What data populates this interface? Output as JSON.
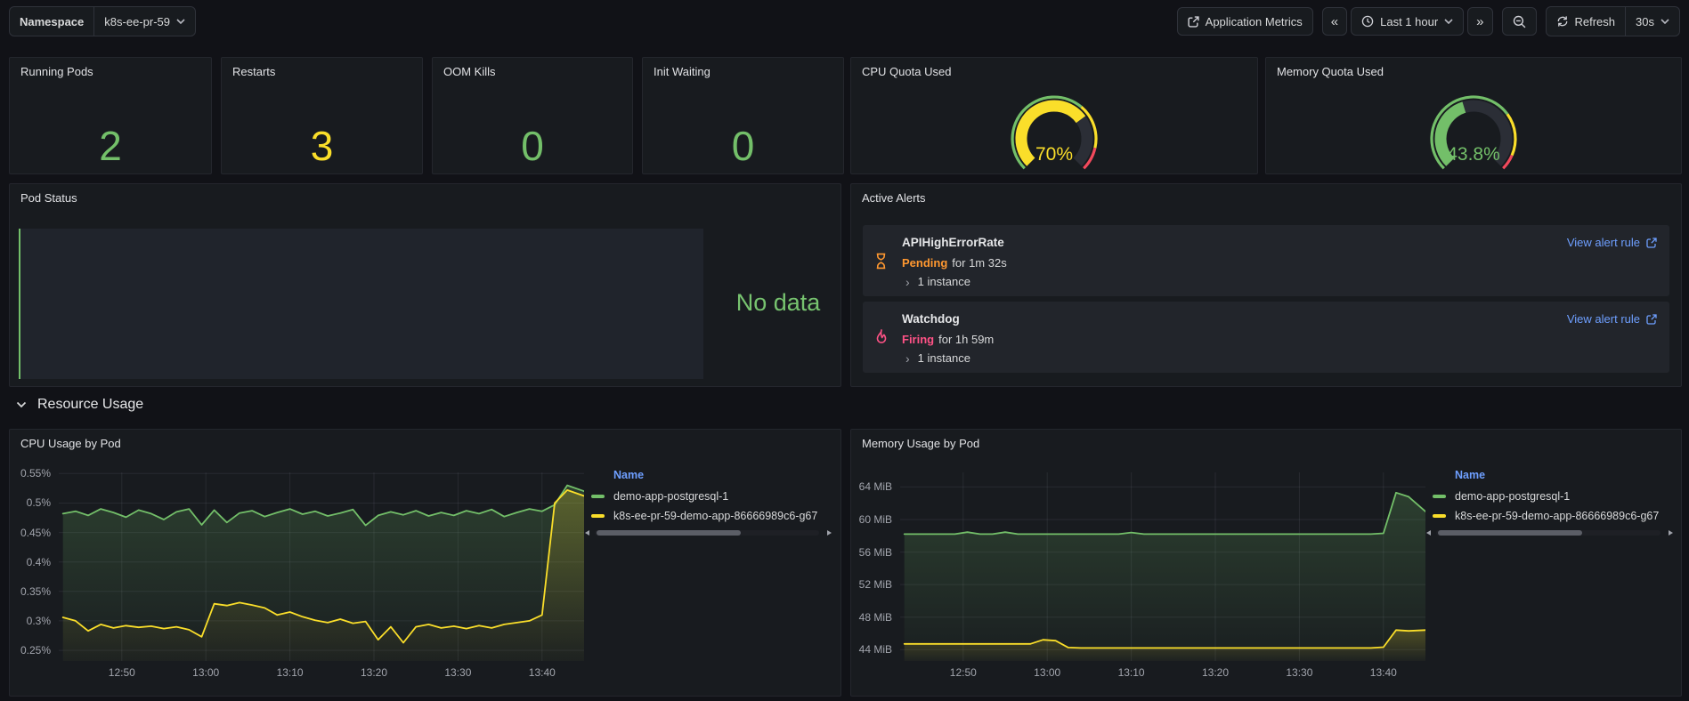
{
  "colors": {
    "green": "#73BF69",
    "yellow": "#FADE2A",
    "red": "#F2495C",
    "blue": "#6E9FFF",
    "orange": "#FF9830",
    "pink": "#FF5286"
  },
  "topbar": {
    "namespace_label": "Namespace",
    "namespace_value": "k8s-ee-pr-59",
    "app_metrics_label": "Application Metrics",
    "back_label": "«",
    "forward_label": "»",
    "time_range_label": "Last 1 hour",
    "refresh_label": "Refresh",
    "interval_label": "30s"
  },
  "stats": [
    {
      "title": "Running Pods",
      "value": "2",
      "color": "#73BF69"
    },
    {
      "title": "Restarts",
      "value": "3",
      "color": "#FADE2A"
    },
    {
      "title": "OOM Kills",
      "value": "0",
      "color": "#73BF69"
    },
    {
      "title": "Init Waiting",
      "value": "0",
      "color": "#73BF69"
    }
  ],
  "gauges": [
    {
      "title": "CPU Quota Used",
      "value": "70%",
      "percent": 70,
      "color": "#FADE2A",
      "thresholds": [
        {
          "to": 65,
          "color": "#73BF69"
        },
        {
          "to": 88,
          "color": "#FADE2A"
        },
        {
          "to": 100,
          "color": "#F2495C"
        }
      ]
    },
    {
      "title": "Memory Quota Used",
      "value": "43.8%",
      "percent": 43.8,
      "color": "#73BF69",
      "thresholds": [
        {
          "to": 70,
          "color": "#73BF69"
        },
        {
          "to": 92,
          "color": "#FADE2A"
        },
        {
          "to": 100,
          "color": "#F2495C"
        }
      ]
    }
  ],
  "pod_status": {
    "title": "Pod Status",
    "no_data": "No data"
  },
  "alerts": {
    "title": "Active Alerts",
    "items": [
      {
        "name": "APIHighErrorRate",
        "state": "Pending",
        "state_color": "#FF9830",
        "duration": "for 1m 32s",
        "instances": "1 instance",
        "link": "View alert rule"
      },
      {
        "name": "Watchdog",
        "state": "Firing",
        "state_color": "#FF5286",
        "duration": "for 1h 59m",
        "instances": "1 instance",
        "link": "View alert rule"
      }
    ]
  },
  "section": {
    "title": "Resource Usage"
  },
  "chart_data": [
    {
      "type": "line",
      "title": "CPU Usage by Pod",
      "legend_header": "Name",
      "legend_position": "right",
      "grid": true,
      "xrange": [
        762.5,
        825
      ],
      "yrange": [
        0.232,
        0.552
      ],
      "xticks": [
        {
          "v": 770,
          "label": "12:50"
        },
        {
          "v": 780,
          "label": "13:00"
        },
        {
          "v": 790,
          "label": "13:10"
        },
        {
          "v": 800,
          "label": "13:20"
        },
        {
          "v": 810,
          "label": "13:30"
        },
        {
          "v": 820,
          "label": "13:40"
        }
      ],
      "yticks": [
        {
          "v": 0.25,
          "label": "0.25%"
        },
        {
          "v": 0.3,
          "label": "0.3%"
        },
        {
          "v": 0.35,
          "label": "0.35%"
        },
        {
          "v": 0.4,
          "label": "0.4%"
        },
        {
          "v": 0.45,
          "label": "0.45%"
        },
        {
          "v": 0.5,
          "label": "0.5%"
        },
        {
          "v": 0.55,
          "label": "0.55%"
        }
      ],
      "x": [
        763,
        764.5,
        766,
        767.5,
        769,
        770.5,
        772,
        773.5,
        775,
        776.5,
        778,
        779.5,
        781,
        782.5,
        784,
        785.5,
        787,
        788.5,
        790,
        791.5,
        793,
        794.5,
        796,
        797.5,
        799,
        800.5,
        802,
        803.5,
        805,
        806.5,
        808,
        809.5,
        811,
        812.5,
        814,
        815.5,
        817,
        818.5,
        820,
        821.5,
        823,
        825
      ],
      "series": [
        {
          "name": "demo-app-postgresql-1",
          "color": "#73BF69",
          "values": [
            0.482,
            0.486,
            0.479,
            0.49,
            0.484,
            0.476,
            0.488,
            0.482,
            0.472,
            0.485,
            0.49,
            0.463,
            0.488,
            0.467,
            0.483,
            0.487,
            0.477,
            0.484,
            0.49,
            0.481,
            0.486,
            0.478,
            0.483,
            0.489,
            0.462,
            0.479,
            0.485,
            0.48,
            0.487,
            0.478,
            0.484,
            0.479,
            0.487,
            0.482,
            0.489,
            0.477,
            0.484,
            0.49,
            0.486,
            0.497,
            0.53,
            0.52
          ]
        },
        {
          "name": "k8s-ee-pr-59-demo-app-86666989c6-g67",
          "color": "#FADE2A",
          "values": [
            0.306,
            0.3,
            0.283,
            0.294,
            0.288,
            0.292,
            0.289,
            0.291,
            0.287,
            0.29,
            0.285,
            0.273,
            0.329,
            0.326,
            0.331,
            0.327,
            0.322,
            0.31,
            0.315,
            0.307,
            0.301,
            0.297,
            0.303,
            0.296,
            0.299,
            0.268,
            0.29,
            0.263,
            0.29,
            0.294,
            0.288,
            0.291,
            0.287,
            0.292,
            0.288,
            0.294,
            0.297,
            0.3,
            0.31,
            0.5,
            0.522,
            0.512
          ]
        }
      ]
    },
    {
      "type": "line",
      "title": "Memory Usage by Pod",
      "legend_header": "Name",
      "legend_position": "right",
      "grid": true,
      "xrange": [
        762.5,
        825
      ],
      "yrange": [
        42.6,
        65.8
      ],
      "xticks": [
        {
          "v": 770,
          "label": "12:50"
        },
        {
          "v": 780,
          "label": "13:00"
        },
        {
          "v": 790,
          "label": "13:10"
        },
        {
          "v": 800,
          "label": "13:20"
        },
        {
          "v": 810,
          "label": "13:30"
        },
        {
          "v": 820,
          "label": "13:40"
        }
      ],
      "yticks": [
        {
          "v": 44,
          "label": "44 MiB"
        },
        {
          "v": 48,
          "label": "48 MiB"
        },
        {
          "v": 52,
          "label": "52 MiB"
        },
        {
          "v": 56,
          "label": "56 MiB"
        },
        {
          "v": 60,
          "label": "60 MiB"
        },
        {
          "v": 64,
          "label": "64 MiB"
        }
      ],
      "x": [
        763,
        764.5,
        766,
        767.5,
        769,
        770.5,
        772,
        773.5,
        775,
        776.5,
        778,
        779.5,
        781,
        782.5,
        784,
        785.5,
        787,
        788.5,
        790,
        791.5,
        793,
        794.5,
        796,
        797.5,
        799,
        800.5,
        802,
        803.5,
        805,
        806.5,
        808,
        809.5,
        811,
        812.5,
        814,
        815.5,
        817,
        818.5,
        820,
        821.5,
        823,
        825
      ],
      "series": [
        {
          "name": "demo-app-postgresql-1",
          "color": "#73BF69",
          "values": [
            58.2,
            58.2,
            58.2,
            58.2,
            58.2,
            58.45,
            58.2,
            58.2,
            58.45,
            58.2,
            58.2,
            58.2,
            58.2,
            58.2,
            58.2,
            58.2,
            58.2,
            58.2,
            58.4,
            58.2,
            58.2,
            58.2,
            58.2,
            58.2,
            58.2,
            58.2,
            58.2,
            58.2,
            58.2,
            58.2,
            58.2,
            58.2,
            58.2,
            58.2,
            58.2,
            58.2,
            58.2,
            58.2,
            58.3,
            63.3,
            62.8,
            61.0
          ]
        },
        {
          "name": "k8s-ee-pr-59-demo-app-86666989c6-g67",
          "color": "#FADE2A",
          "values": [
            44.7,
            44.7,
            44.7,
            44.7,
            44.7,
            44.7,
            44.7,
            44.7,
            44.7,
            44.7,
            44.7,
            45.2,
            45.1,
            44.25,
            44.2,
            44.2,
            44.2,
            44.2,
            44.2,
            44.2,
            44.2,
            44.2,
            44.2,
            44.2,
            44.2,
            44.2,
            44.2,
            44.2,
            44.2,
            44.2,
            44.2,
            44.2,
            44.2,
            44.2,
            44.2,
            44.2,
            44.2,
            44.2,
            44.3,
            46.4,
            46.3,
            46.4
          ]
        }
      ]
    }
  ]
}
